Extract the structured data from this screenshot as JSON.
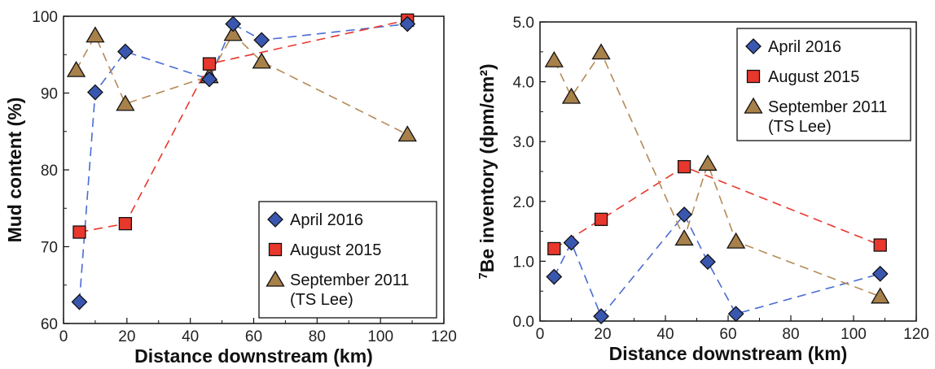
{
  "chart_data": [
    {
      "type": "scatter",
      "xlabel": "Distance downstream (km)",
      "ylabel": "Mud content (%)",
      "xlim": [
        0,
        120
      ],
      "ylim": [
        60,
        100
      ],
      "xticks": [
        "0",
        "20",
        "40",
        "60",
        "80",
        "100",
        "120"
      ],
      "yticks": [
        "60",
        "70",
        "80",
        "90",
        "100"
      ],
      "grid": false,
      "legend_position": "bottom-right",
      "series": [
        {
          "name": "April 2016",
          "marker": "diamond",
          "color": "#3a57b0",
          "line_color": "#4a6cd4",
          "points": [
            [
              5,
              62.8
            ],
            [
              10,
              90.1
            ],
            [
              19.5,
              95.4
            ],
            [
              46,
              91.8
            ],
            [
              53.5,
              99.0
            ],
            [
              62.5,
              96.9
            ],
            [
              108.5,
              99.0
            ]
          ]
        },
        {
          "name": "August 2015",
          "marker": "square",
          "color": "#e8372c",
          "line_color": "#e8372c",
          "points": [
            [
              5,
              71.9
            ],
            [
              19.5,
              73.0
            ],
            [
              46,
              93.8
            ],
            [
              108.5,
              99.5
            ]
          ]
        },
        {
          "name": "September 2011",
          "name_line2": "(TS Lee)",
          "marker": "triangle",
          "color": "#a8804a",
          "line_color": "#b58a55",
          "points": [
            [
              4,
              93.0
            ],
            [
              10,
              97.5
            ],
            [
              19.5,
              88.6
            ],
            [
              46,
              92.2
            ],
            [
              53.5,
              97.7
            ],
            [
              62.5,
              94.1
            ],
            [
              108.5,
              84.6
            ]
          ]
        }
      ]
    },
    {
      "type": "scatter",
      "xlabel": "Distance downstream (km)",
      "ylabel_superscript": "7",
      "ylabel": "Be inventory (dpm/cm²)",
      "xlim": [
        0,
        120
      ],
      "ylim": [
        0,
        5
      ],
      "xticks": [
        "0",
        "20",
        "40",
        "60",
        "80",
        "100",
        "120"
      ],
      "yticks": [
        "0.0",
        "1.0",
        "2.0",
        "3.0",
        "4.0",
        "5.0"
      ],
      "grid": false,
      "legend_position": "top-right",
      "series": [
        {
          "name": "April 2016",
          "marker": "diamond",
          "color": "#3a57b0",
          "line_color": "#4a6cd4",
          "points": [
            [
              4.5,
              0.74
            ],
            [
              10,
              1.31
            ],
            [
              19.5,
              0.08
            ],
            [
              46,
              1.78
            ],
            [
              53.5,
              0.99
            ],
            [
              62.5,
              0.12
            ],
            [
              108.5,
              0.79
            ]
          ]
        },
        {
          "name": "August 2015",
          "marker": "square",
          "color": "#e8372c",
          "line_color": "#e8372c",
          "points": [
            [
              4.5,
              1.21
            ],
            [
              19.5,
              1.7
            ],
            [
              46,
              2.58
            ],
            [
              108.5,
              1.27
            ]
          ]
        },
        {
          "name": "September 2011",
          "name_line2": "(TS Lee)",
          "marker": "triangle",
          "color": "#a8804a",
          "line_color": "#b58a55",
          "points": [
            [
              4.5,
              4.36
            ],
            [
              10,
              3.75
            ],
            [
              19.5,
              4.49
            ],
            [
              46,
              1.38
            ],
            [
              53.5,
              2.63
            ],
            [
              62.5,
              1.33
            ],
            [
              108.5,
              0.41
            ]
          ]
        }
      ]
    }
  ]
}
